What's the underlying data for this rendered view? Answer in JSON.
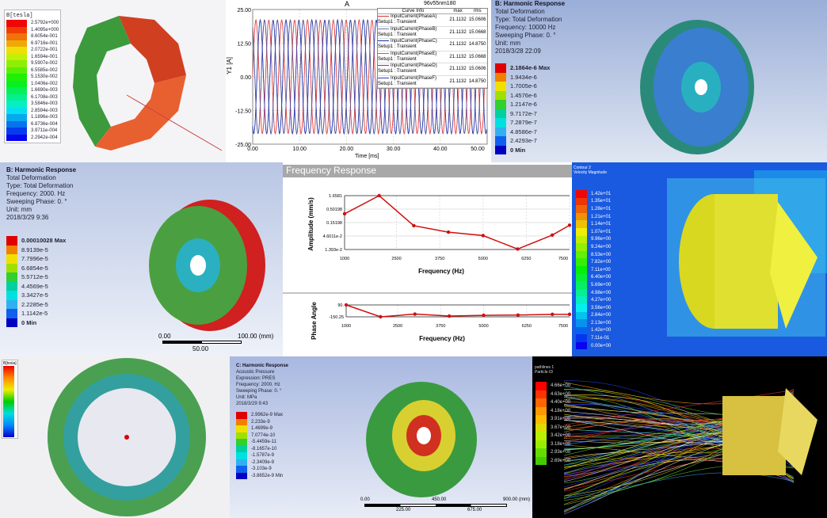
{
  "panel_b_field": {
    "legend_title": "B[tesla]",
    "values": [
      "2.5792e+000",
      "1.4095e+000",
      "8.6054e-001",
      "6.9716e-001",
      "2.0722e-001",
      "1.6594e-001",
      "9.5907e-002",
      "6.5585e-002",
      "5.1530e-002",
      "1.0406e-002",
      "1.6690e-003",
      "6.1708e-003",
      "3.5846e-003",
      "2.8594e-003",
      "1.1896e-003",
      "6.8736e-004",
      "3.9711e-004",
      "2.2942e-004"
    ]
  },
  "panel_current": {
    "title": "A",
    "project": "96v55nm180",
    "ylabel": "Y1 [A]",
    "xlabel": "Time [ms]",
    "legend_header": [
      "Curve Info",
      "max",
      "rms"
    ],
    "curves": [
      {
        "name": "InputCurrent(PhaseA)",
        "setup": "Setup1 : Transient",
        "max": "21.1132",
        "rms": "15.0606",
        "color": "#e03030"
      },
      {
        "name": "InputCurrent(PhaseB)",
        "setup": "Setup1 : Transient",
        "max": "21.1132",
        "rms": "15.0668",
        "color": "#7070c0"
      },
      {
        "name": "InputCurrent(PhaseC)",
        "setup": "Setup1 : Transient",
        "max": "21.1132",
        "rms": "14.8750",
        "color": "#2030a0"
      },
      {
        "name": "InputCurrent(PhaseE)",
        "setup": "Setup1 : Transient",
        "max": "21.1132",
        "rms": "15.0668",
        "color": "#e05050"
      },
      {
        "name": "InputCurrent(PhaseD)",
        "setup": "Setup1 : Transient",
        "max": "21.1132",
        "rms": "15.0606",
        "color": "#505090"
      },
      {
        "name": "InputCurrent(PhaseF)",
        "setup": "Setup1 : Transient",
        "max": "21.1132",
        "rms": "14.8750",
        "color": "#3040b0"
      }
    ],
    "chart_data": {
      "type": "line",
      "xlim": [
        0,
        50
      ],
      "ylim": [
        -25,
        25
      ],
      "xticks": [
        "0.00",
        "10.00",
        "20.00",
        "30.00",
        "40.00",
        "50.00"
      ],
      "yticks": [
        "25.00",
        "12.50",
        "0.00",
        "-12.50",
        "-25.00"
      ],
      "amplitude": 21.1132,
      "period_ms": 2.75
    }
  },
  "panel_harmonic_10k": {
    "title": "B: Harmonic Response",
    "lines": [
      "Total Deformation",
      "Type: Total Deformation",
      "Frequency: 10000 Hz",
      "Sweeping Phase: 0. °",
      "Unit: mm",
      "2018/3/28 22:09"
    ],
    "legend": [
      "2.1864e-6 Max",
      "1.9434e-6",
      "1.7005e-6",
      "1.4576e-6",
      "1.2147e-6",
      "9.7172e-7",
      "7.2879e-7",
      "4.8586e-7",
      "2.4293e-7",
      "0 Min"
    ]
  },
  "panel_harmonic_2k": {
    "title": "B: Harmonic Response",
    "lines": [
      "Total Deformation",
      "Type: Total Deformation",
      "Frequency: 2000. Hz",
      "Sweeping Phase: 0. °",
      "Unit: mm",
      "2018/3/29 9:36"
    ],
    "legend": [
      "0.00010028 Max",
      "8.9139e-5",
      "7.7996e-5",
      "6.6854e-5",
      "5.5712e-5",
      "4.4569e-5",
      "3.3427e-5",
      "2.2285e-5",
      "1.1142e-5",
      "0 Min"
    ],
    "scale": [
      "0.00",
      "50.00",
      "100.00 (mm)"
    ]
  },
  "panel_freq": {
    "title": "Frequency Response",
    "chart_data": [
      {
        "type": "line",
        "xlabel": "Frequency (Hz)",
        "ylabel": "Amplitude (mm/s)",
        "log_y": true,
        "yticks": [
          "1.6581",
          "0.50198",
          "0.15198",
          "4.6011e-2",
          "1.393e-2"
        ],
        "xticks": [
          "1000",
          "2500",
          "3750",
          "5000",
          "6250",
          "7500"
        ],
        "xlim": [
          1000,
          7500
        ],
        "ylim": [
          0.01393,
          1.6581
        ],
        "x": [
          1000,
          2000,
          3000,
          4000,
          5000,
          6000,
          7000,
          7500
        ],
        "y": [
          0.33,
          1.6581,
          0.115,
          0.065,
          0.048,
          0.0145,
          0.05,
          0.12
        ],
        "color": "#d01010"
      },
      {
        "type": "line",
        "xlabel": "Frequency (Hz)",
        "ylabel": "Phase Angle",
        "yticks": [
          "90.",
          "-150.25"
        ],
        "xticks": [
          "1000",
          "2500",
          "3750",
          "5000",
          "6250",
          "7500"
        ],
        "xlim": [
          1000,
          7500
        ],
        "ylim": [
          -150.25,
          90
        ],
        "x": [
          1000,
          2000,
          3000,
          4000,
          5000,
          6000,
          7000,
          7500
        ],
        "y": [
          90,
          -150,
          -95,
          -135,
          -120,
          -115,
          -100,
          -100
        ],
        "color": "#d01010"
      }
    ]
  },
  "panel_cfd": {
    "title": "Contour 2",
    "subtitle": "Velocity Magnitude",
    "legend": [
      "1.42e+01",
      "1.35e+01",
      "1.28e+01",
      "1.21e+01",
      "1.14e+01",
      "1.07e+01",
      "9.96e+00",
      "9.24e+00",
      "8.53e+00",
      "7.82e+00",
      "7.11e+00",
      "6.40e+00",
      "5.69e+00",
      "4.98e+00",
      "4.27e+00",
      "3.56e+00",
      "2.84e+00",
      "2.13e+00",
      "1.42e+00",
      "7.11e-01",
      "0.00e+00"
    ]
  },
  "panel_stator": {
    "legend_title": "B[tesla]",
    "count": 18
  },
  "panel_acoustic": {
    "title": "C: Harmonic Response",
    "lines": [
      "Acoustic Pressure",
      "Expression: PRES",
      "Frequency: 2000. Hz",
      "Sweeping Phase: 0. °",
      "Unit: MPa",
      "2018/3/29 9:43"
    ],
    "legend": [
      "2.9962e-9 Max",
      "2.233e-9",
      "1.4699e-9",
      "7.0774e-10",
      "-5.4459e-11",
      "-8.1657e-10",
      "-1.5787e-9",
      "-2.3409e-9",
      "-3.103e-9",
      "-3.8652e-9 Min"
    ],
    "scale": [
      "0.00",
      "225.00",
      "450.00",
      "675.00",
      "900.00 (mm)"
    ]
  },
  "panel_stream": {
    "title": "pathlines 1",
    "subtitle": "Particle ID",
    "legend": [
      "4.66e+00",
      "4.63e+00",
      "4.40e+00",
      "4.18e+00",
      "3.91e+00",
      "3.67e+00",
      "3.42e+00",
      "3.18e+00",
      "2.93e+00",
      "2.69e+00"
    ]
  }
}
